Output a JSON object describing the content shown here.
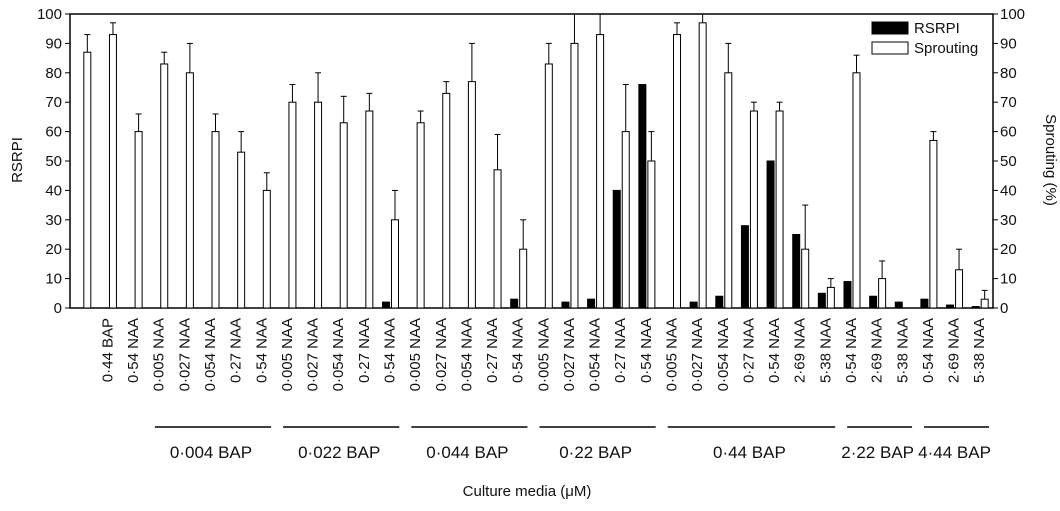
{
  "chart_data": {
    "type": "bar",
    "x_label": "Culture media (μM)",
    "y_label": "RSRPI",
    "y2_label": "Sprouting (%)",
    "categories": [
      null,
      "0·44 BAP",
      "0·54 NAA",
      "0·005 NAA",
      "0·027 NAA",
      "0·054 NAA",
      "0·27 NAA",
      "0·54 NAA",
      "0·005 NAA",
      "0·027 NAA",
      "0·054 NAA",
      "0·27 NAA",
      "0·54 NAA",
      "0·005 NAA",
      "0·027 NAA",
      "0·054 NAA",
      "0·27 NAA",
      "0·54 NAA",
      "0·005 NAA",
      "0·027 NAA",
      "0·054 NAA",
      "0·27 NAA",
      "0·54 NAA",
      "0·005 NAA",
      "0·027 NAA",
      "0·054 NAA",
      "0·27 NAA",
      "0·54 NAA",
      "2·69 NAA",
      "5·38 NAA",
      "0·54 NAA",
      "2·69 NAA",
      "5·38 NAA",
      "0·54 NAA",
      "2·69 NAA",
      "5·38 NAA"
    ],
    "groups": [
      {
        "label": null,
        "count": 3
      },
      {
        "label": "0·004 BAP",
        "count": 5
      },
      {
        "label": "0·022 BAP",
        "count": 5
      },
      {
        "label": "0·044 BAP",
        "count": 5
      },
      {
        "label": "0·22 BAP",
        "count": 5
      },
      {
        "label": "0·44 BAP",
        "count": 7
      },
      {
        "label": "2·22 BAP",
        "count": 3
      },
      {
        "label": "4·44 BAP",
        "count": 3
      }
    ],
    "series": [
      {
        "name": "RSRPI",
        "color": "#000000",
        "axis": "y",
        "values": [
          0,
          0,
          0,
          0,
          0,
          0,
          0,
          0,
          0,
          0,
          0,
          0,
          2,
          0,
          0,
          0,
          0,
          3,
          0,
          2,
          3,
          40,
          76,
          0,
          2,
          4,
          28,
          50,
          25,
          5,
          9,
          4,
          2,
          3,
          1,
          0.5
        ]
      },
      {
        "name": "Sprouting",
        "color": "#ffffff",
        "axis": "y2",
        "values": [
          87,
          93,
          60,
          83,
          80,
          60,
          53,
          40,
          70,
          70,
          63,
          67,
          30,
          63,
          73,
          77,
          47,
          20,
          83,
          90,
          93,
          60,
          50,
          93,
          97,
          80,
          67,
          67,
          20,
          7,
          80,
          10,
          0,
          57,
          13,
          3
        ],
        "errors": [
          6,
          4,
          6,
          4,
          10,
          6,
          7,
          6,
          6,
          10,
          9,
          6,
          10,
          4,
          4,
          13,
          12,
          10,
          7,
          10,
          7,
          16,
          10,
          4,
          3,
          10,
          3,
          3,
          15,
          3,
          6,
          6,
          0,
          3,
          7,
          3
        ]
      }
    ],
    "ylim": [
      0,
      100
    ],
    "yticks": [
      0,
      10,
      20,
      30,
      40,
      50,
      60,
      70,
      80,
      90,
      100
    ],
    "y2lim": [
      0,
      100
    ],
    "y2ticks": [
      0,
      10,
      20,
      30,
      40,
      50,
      60,
      70,
      80,
      90,
      100
    ],
    "legend": "upper right"
  }
}
